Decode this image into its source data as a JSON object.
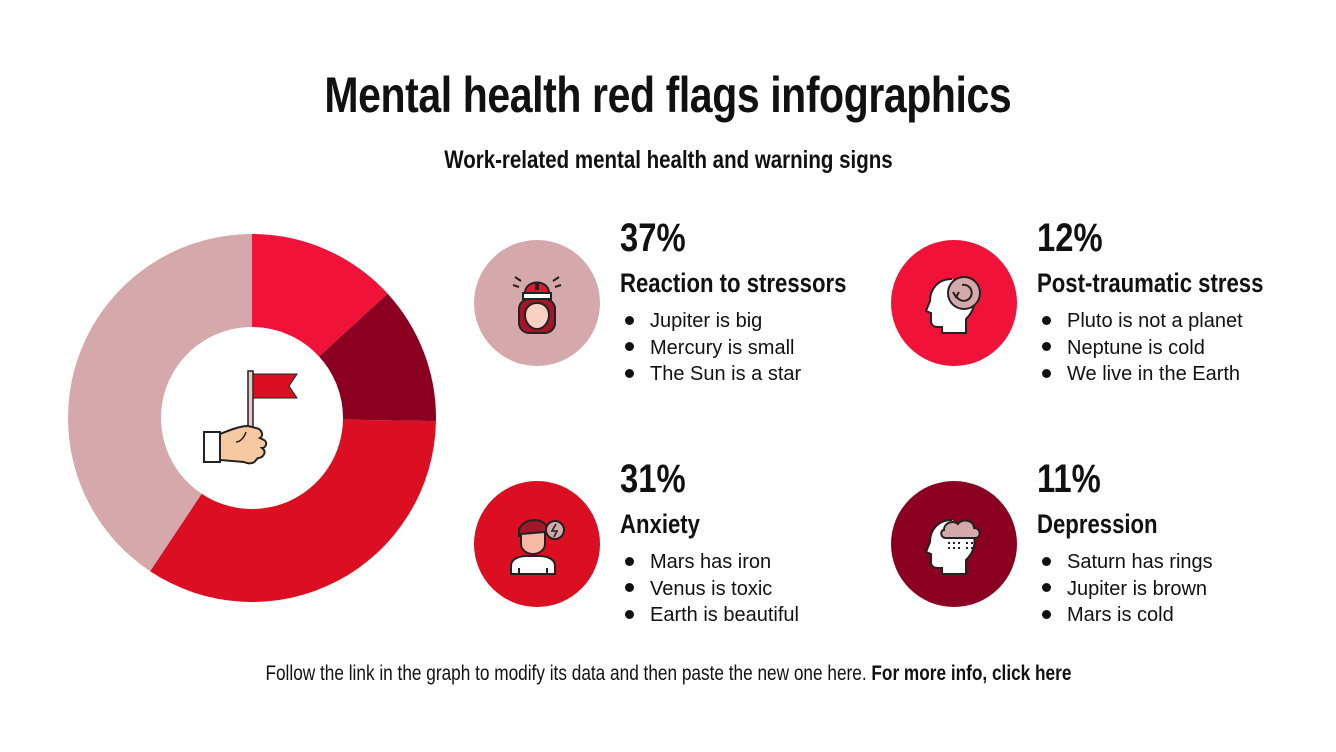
{
  "header": {
    "title": "Mental health red flags infographics",
    "subtitle": "Work-related mental health and warning signs"
  },
  "colors": {
    "pink": "#D5A9AB",
    "bright_red": "#F01238",
    "red": "#DB0E22",
    "dark_red": "#8B0020"
  },
  "donut_center_icon": "hand-holding-red-flag-icon",
  "items": [
    {
      "percent": "37%",
      "label": "Reaction to stressors",
      "icon": "alarm-siren-person-icon",
      "color": "#D5A9AB",
      "bullets": [
        "Jupiter is big",
        "Mercury is small",
        "The Sun is a star"
      ]
    },
    {
      "percent": "12%",
      "label": "Post-traumatic stress",
      "icon": "head-with-loop-icon",
      "color": "#F01238",
      "bullets": [
        "Pluto is not a planet",
        "Neptune is cold",
        "We live in the Earth"
      ]
    },
    {
      "percent": "31%",
      "label": "Anxiety",
      "icon": "anxious-person-icon",
      "color": "#DB0E22",
      "bullets": [
        "Mars has iron",
        "Venus is toxic",
        "Earth is beautiful"
      ]
    },
    {
      "percent": "11%",
      "label": "Depression",
      "icon": "head-with-rain-cloud-icon",
      "color": "#8B0020",
      "bullets": [
        "Saturn has rings",
        "Jupiter is brown",
        "Mars is cold"
      ]
    }
  ],
  "footer": {
    "text": "Follow the link in the graph to modify its data and then paste the new one here.",
    "link_text": "For more info, click here"
  },
  "chart_data": {
    "type": "pie",
    "subtype": "donut",
    "title": "Mental health red flags infographics",
    "categories": [
      "Post-traumatic stress",
      "Depression",
      "Anxiety",
      "Reaction to stressors"
    ],
    "values": [
      12,
      11,
      31,
      37
    ],
    "colors": [
      "#F01238",
      "#8B0020",
      "#DB0E22",
      "#D5A9AB"
    ],
    "start_angle": "top (12 o'clock), clockwise",
    "legend": "none (values shown beside icons)",
    "unit": "%"
  }
}
